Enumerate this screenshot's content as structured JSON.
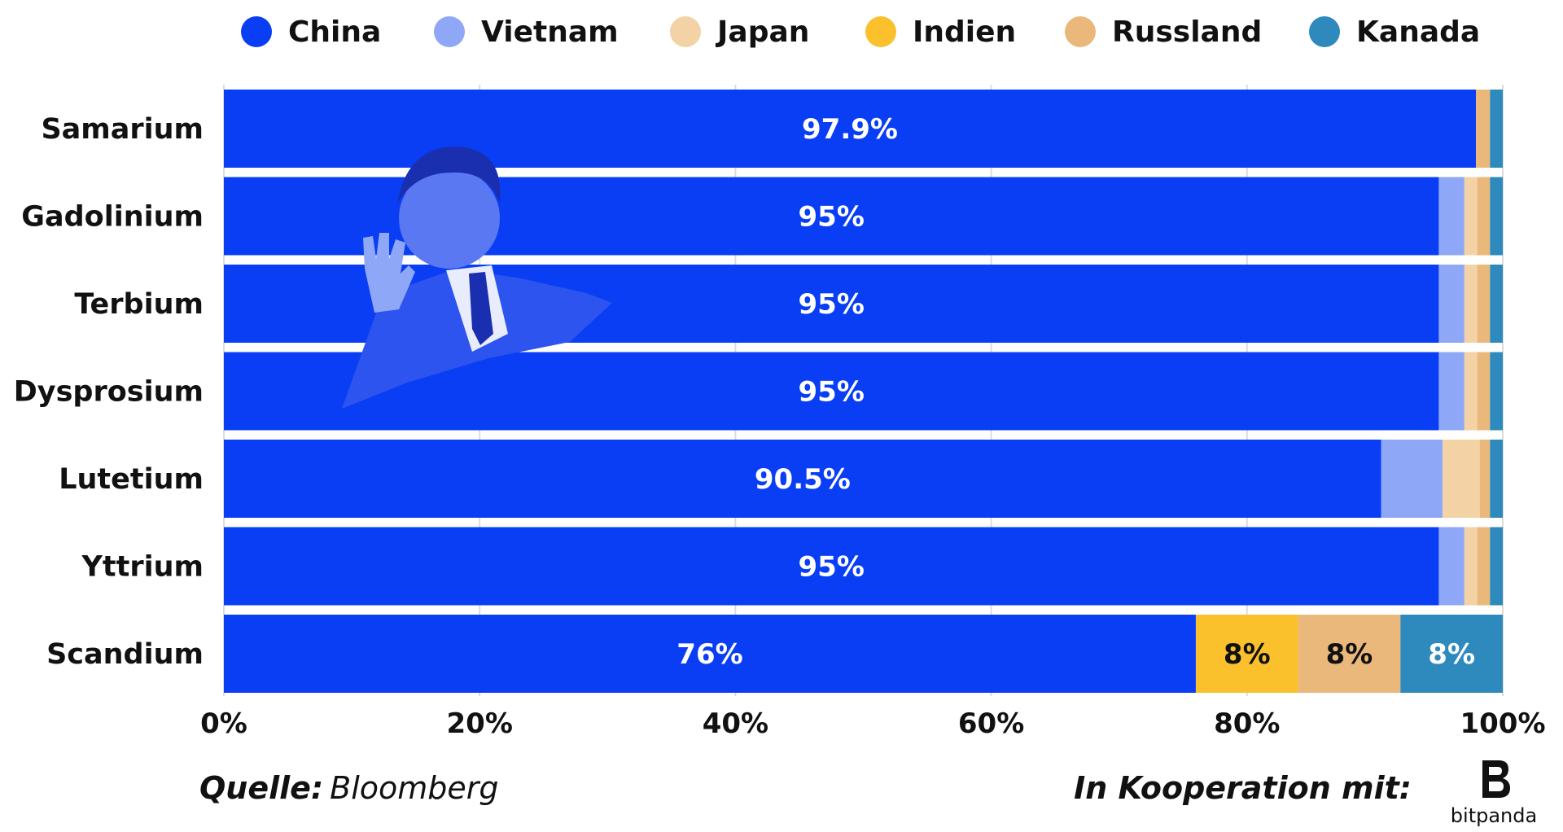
{
  "chart_data": {
    "type": "bar",
    "orientation": "horizontal",
    "stacked": true,
    "categories": [
      "Samarium",
      "Gadolinium",
      "Terbium",
      "Dysprosium",
      "Lutetium",
      "Yttrium",
      "Scandium"
    ],
    "series": [
      {
        "name": "China",
        "color": "#0a3ef5",
        "values": [
          97.9,
          95,
          95,
          95,
          90.5,
          95,
          76
        ],
        "labels": [
          "97.9%",
          "95%",
          "95%",
          "95%",
          "90.5%",
          "95%",
          "76%"
        ],
        "label_color": "#ffffff"
      },
      {
        "name": "Vietnam",
        "color": "#8ea7f7",
        "values": [
          0,
          2,
          2,
          2,
          4.8,
          2,
          0
        ],
        "labels": [
          "",
          "",
          "",
          "",
          "",
          "",
          ""
        ],
        "label_color": "#111111"
      },
      {
        "name": "Japan",
        "color": "#f3d3a5",
        "values": [
          0,
          1,
          1,
          1,
          2.9,
          1,
          0
        ],
        "labels": [
          "",
          "",
          "",
          "",
          "",
          "",
          ""
        ],
        "label_color": "#111111"
      },
      {
        "name": "Indien",
        "color": "#fac12d",
        "values": [
          0,
          0,
          0,
          0,
          0,
          0,
          8
        ],
        "labels": [
          "",
          "",
          "",
          "",
          "",
          "",
          "8%"
        ],
        "label_color": "#111111"
      },
      {
        "name": "Russland",
        "color": "#ebb87c",
        "values": [
          1.1,
          1,
          1,
          1,
          0.8,
          1,
          8
        ],
        "labels": [
          "",
          "",
          "",
          "",
          "",
          "",
          "8%"
        ],
        "label_color": "#111111"
      },
      {
        "name": "Kanada",
        "color": "#2e8abd",
        "values": [
          1,
          1,
          1,
          1,
          1,
          1,
          8
        ],
        "labels": [
          "",
          "",
          "",
          "",
          "",
          "",
          "8%"
        ],
        "label_color": "#ffffff"
      }
    ],
    "x_ticks": [
      "0%",
      "20%",
      "40%",
      "60%",
      "80%",
      "100%"
    ],
    "xlim": [
      0,
      100
    ],
    "grid": true,
    "legend_position": "top"
  },
  "footer": {
    "source_label": "Quelle:",
    "source_value": "Bloomberg",
    "cooperation_text": "In Kooperation mit:",
    "brand_name": "bitpanda"
  }
}
